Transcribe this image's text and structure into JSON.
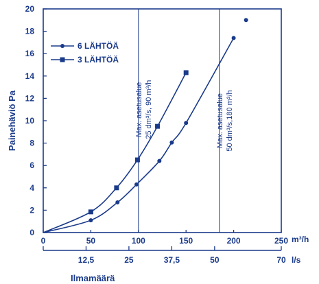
{
  "chart_data": {
    "type": "line",
    "ylabel": "Painehäviö Pa",
    "xlabel": "Ilmamäärä",
    "x_unit_primary": "m³/h",
    "x_unit_secondary": "l/s",
    "ylim": [
      0,
      20
    ],
    "xlim": [
      0,
      250
    ],
    "y_ticks": [
      "0",
      "2",
      "4",
      "6",
      "8",
      "10",
      "12",
      "14",
      "16",
      "18",
      "20"
    ],
    "x_ticks_primary": [
      {
        "value": 0,
        "label": "0"
      },
      {
        "value": 50,
        "label": "50"
      },
      {
        "value": 100,
        "label": "100"
      },
      {
        "value": 150,
        "label": "150"
      },
      {
        "value": 200,
        "label": "200"
      },
      {
        "value": 250,
        "label": "250"
      }
    ],
    "x_ticks_secondary": [
      {
        "value": 0,
        "label": ""
      },
      {
        "value": 45,
        "label": "12,5"
      },
      {
        "value": 90,
        "label": "25"
      },
      {
        "value": 135,
        "label": "37,5"
      },
      {
        "value": 180,
        "label": "50"
      },
      {
        "value": 250,
        "label": "70"
      }
    ],
    "grid_x": [
      100,
      185
    ],
    "series": [
      {
        "name": "6 LÄHTÖÄ",
        "marker": "circle",
        "points": [
          [
            0,
            0
          ],
          [
            50,
            1.1
          ],
          [
            78,
            2.7
          ],
          [
            98,
            4.3
          ],
          [
            122,
            6.4
          ],
          [
            135,
            8.05
          ],
          [
            150,
            9.8
          ],
          [
            200,
            17.4
          ]
        ],
        "extra_points": [
          [
            213,
            19.0
          ]
        ]
      },
      {
        "name": "3 LÄHTÖÄ",
        "marker": "square",
        "points": [
          [
            0,
            0
          ],
          [
            50,
            1.85
          ],
          [
            77,
            4.0
          ],
          [
            99,
            6.5
          ],
          [
            120,
            9.5
          ],
          [
            150,
            14.3
          ]
        ]
      }
    ],
    "annotations": [
      {
        "lines": [
          "Max. asetusalue",
          "25 dm³/s, 90 m³/h"
        ],
        "x": 103,
        "y": 11
      },
      {
        "lines": [
          "Max. asetusalue",
          "50 dm³/s,180 m³/h"
        ],
        "x": 188,
        "y": 10
      }
    ],
    "colors": {
      "line": "#1a3a8a",
      "text": "#1a3a8a"
    }
  }
}
